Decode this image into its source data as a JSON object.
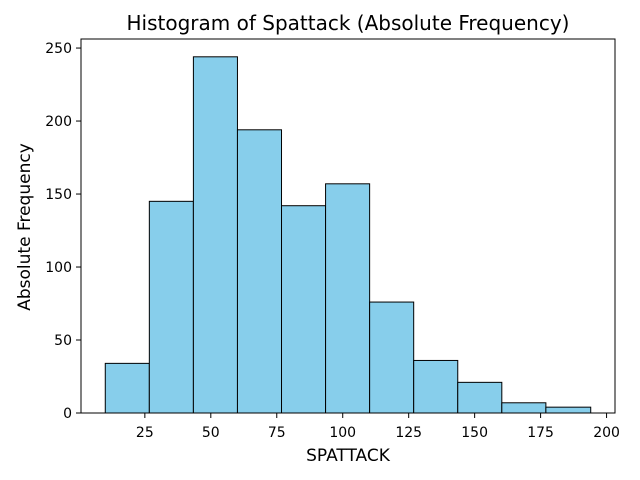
{
  "chart_data": {
    "type": "bar",
    "title": "Histogram of Spattack (Absolute Frequency)",
    "xlabel": "SPATTACK",
    "ylabel": "Absolute Frequency",
    "bins": [
      {
        "start": 10,
        "end": 26.7,
        "count": 34
      },
      {
        "start": 26.7,
        "end": 43.4,
        "count": 145
      },
      {
        "start": 43.4,
        "end": 60.1,
        "count": 244
      },
      {
        "start": 60.1,
        "end": 76.8,
        "count": 194
      },
      {
        "start": 76.8,
        "end": 93.5,
        "count": 142
      },
      {
        "start": 93.5,
        "end": 110.2,
        "count": 157
      },
      {
        "start": 110.2,
        "end": 126.9,
        "count": 76
      },
      {
        "start": 126.9,
        "end": 143.6,
        "count": 36
      },
      {
        "start": 143.6,
        "end": 160.3,
        "count": 21
      },
      {
        "start": 160.3,
        "end": 177.0,
        "count": 7
      },
      {
        "start": 177.0,
        "end": 194.0,
        "count": 4
      }
    ],
    "x_ticks": [
      25,
      50,
      75,
      100,
      125,
      150,
      175,
      200
    ],
    "y_ticks": [
      0,
      50,
      100,
      150,
      200,
      250
    ],
    "xlim": [
      0.8,
      203.2
    ],
    "ylim": [
      0,
      256.2
    ],
    "grid": false,
    "bar_color": "#87CEEB",
    "edge_color": "#000000"
  }
}
